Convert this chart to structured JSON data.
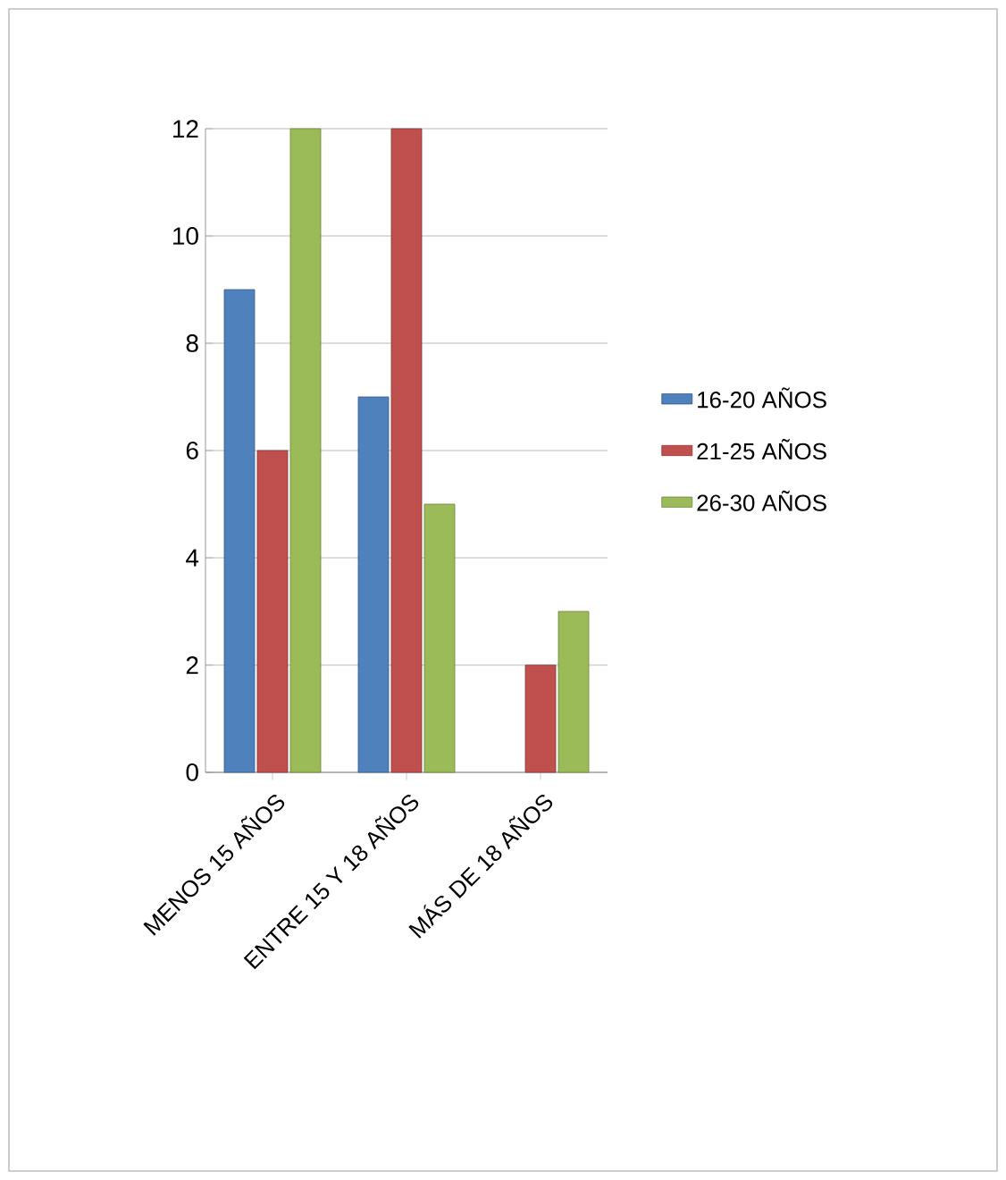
{
  "chart_data": {
    "type": "bar",
    "categories": [
      "MENOS 15 AÑOS",
      "ENTRE 15 Y 18 AÑOS",
      "MÁS DE 18 AÑOS"
    ],
    "series": [
      {
        "name": "16-20 AÑOS",
        "color": "#4f81bd",
        "values": [
          9,
          7,
          null
        ]
      },
      {
        "name": "21-25 AÑOS",
        "color": "#c0504d",
        "values": [
          6,
          12,
          2
        ]
      },
      {
        "name": "26-30 AÑOS",
        "color": "#9bbb59",
        "values": [
          12,
          5,
          3
        ]
      }
    ],
    "ylim": [
      0,
      12
    ],
    "yticks": [
      0,
      2,
      4,
      6,
      8,
      10,
      12
    ],
    "grid": "y",
    "legend": "right"
  }
}
